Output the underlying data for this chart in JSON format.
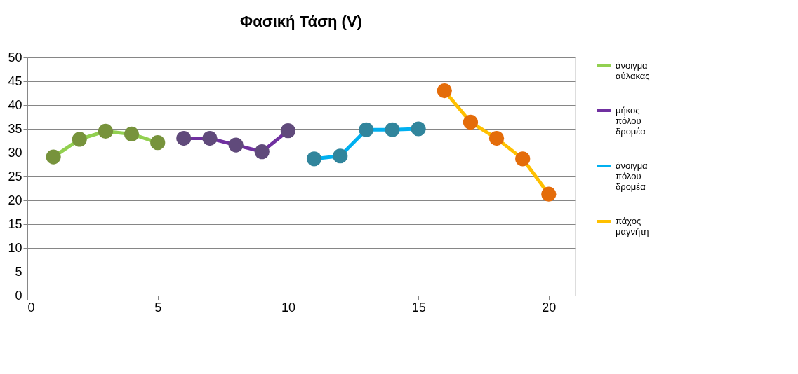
{
  "chart_data": {
    "type": "line",
    "title": "Φασική Τάση (V)",
    "series": [
      {
        "name": "άνοιγμα αύλακας",
        "color": "#92d050",
        "colors": [
          "#77933c",
          "#77933c",
          "#77933c",
          "#77933c",
          "#77933c"
        ],
        "x": [
          1,
          2,
          3,
          4,
          5
        ],
        "values": [
          29.1,
          32.8,
          34.5,
          33.9,
          32.1
        ]
      },
      {
        "name": "μήκος πόλου δρομέα",
        "color": "#7030a0",
        "colors": [
          "#604a7b",
          "#604a7b",
          "#604a7b",
          "#604a7b",
          "#604a7b"
        ],
        "x": [
          6,
          7,
          8,
          9,
          10
        ],
        "values": [
          33.0,
          33.0,
          31.6,
          30.2,
          34.6
        ]
      },
      {
        "name": "άνοιγμα πόλου δρομέα",
        "color": "#00b0f0",
        "colors": [
          "#31859c",
          "#31859c",
          "#31859c",
          "#31859c",
          "#31859c"
        ],
        "x": [
          11,
          12,
          13,
          14,
          15
        ],
        "values": [
          28.7,
          29.3,
          34.8,
          34.8,
          35.0
        ]
      },
      {
        "name": "πάχος μαγνήτη",
        "color": "#ffc000",
        "colors": [
          "#e46c0a",
          "#e46c0a",
          "#e46c0a",
          "#e46c0a",
          "#e46c0a"
        ],
        "x": [
          16,
          17,
          18,
          19,
          20
        ],
        "values": [
          43.0,
          36.4,
          33.0,
          28.7,
          21.3
        ]
      }
    ],
    "xlim": [
      0,
      21
    ],
    "xticks": [
      0,
      5,
      10,
      15,
      20
    ],
    "ylim": [
      0,
      50
    ],
    "yticks": [
      0,
      5,
      10,
      15,
      20,
      25,
      30,
      35,
      40,
      45,
      50
    ],
    "grid": "y",
    "legend": "right",
    "marker": "circle",
    "line_style": "solid"
  }
}
